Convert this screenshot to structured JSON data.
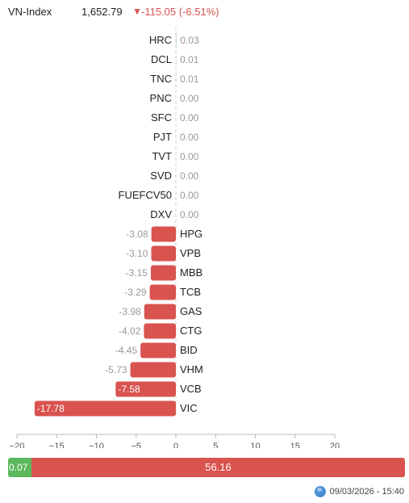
{
  "header": {
    "index_name": "VN-Index",
    "index_value": "1,652.79",
    "arrow": "▼",
    "index_change": "-115.05 (-6.51%)"
  },
  "colors": {
    "negative": "#d9534f",
    "positive": "#5cb85c",
    "muted": "#999999"
  },
  "chart_data": {
    "type": "bar",
    "orientation": "horizontal",
    "categories": [
      "HRC",
      "DCL",
      "TNC",
      "PNC",
      "SFC",
      "PJT",
      "TVT",
      "SVD",
      "FUEFCV50",
      "DXV",
      "HPG",
      "VPB",
      "MBB",
      "TCB",
      "GAS",
      "CTG",
      "BID",
      "VHM",
      "VCB",
      "VIC"
    ],
    "values": [
      0.03,
      0.01,
      0.01,
      0.0,
      0.0,
      0.0,
      0.0,
      0.0,
      0.0,
      0.0,
      -3.08,
      -3.1,
      -3.15,
      -3.29,
      -3.98,
      -4.02,
      -4.45,
      -5.73,
      -7.58,
      -17.78
    ],
    "value_labels": [
      "0.03",
      "0.01",
      "0.01",
      "0.00",
      "0.00",
      "0.00",
      "0.00",
      "0.00",
      "0.00",
      "0.00",
      "-3.08",
      "-3.10",
      "-3.15",
      "-3.29",
      "-3.98",
      "-4.02",
      "-4.45",
      "-5.73",
      "-7.58",
      "-17.78"
    ],
    "xlim": [
      -20,
      20
    ],
    "xticks": [
      "−20",
      "−15",
      "−10",
      "−5",
      "0",
      "5",
      "10",
      "15",
      "20"
    ],
    "xtick_values": [
      -20,
      -15,
      -10,
      -5,
      0,
      5,
      10,
      15,
      20
    ],
    "title": "",
    "xlabel": "",
    "ylabel": ""
  },
  "breadth": {
    "up_label": "0.07",
    "down_label": "56.16",
    "up_value": 0.07,
    "down_value": 56.16
  },
  "footer": {
    "timestamp": "09/03/2026 - 15:40",
    "icon": "globe-icon"
  }
}
